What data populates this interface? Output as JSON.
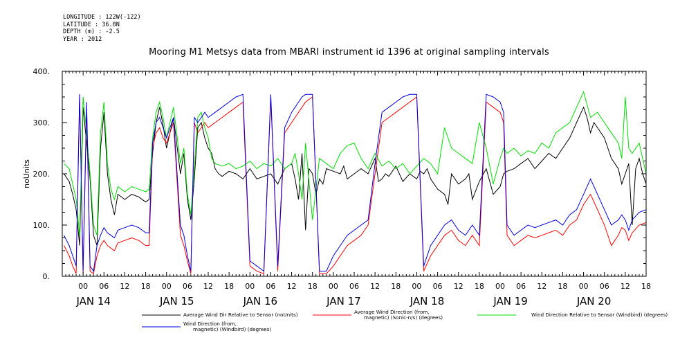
{
  "header": {
    "longitude": "LONGITUDE : 122W(-122)",
    "latitude": "LATITUDE : 36.8N",
    "depth": "DEPTH (m) : -2.5",
    "year": "YEAR : 2012"
  },
  "chart_data": {
    "type": "line",
    "title": "Mooring M1 Metsys data from MBARI instrument id 1396 at original sampling intervals",
    "ylabel": "noUnits",
    "ylim": [
      0,
      400
    ],
    "yticks": [
      0,
      100,
      200,
      300,
      400
    ],
    "ytick_labels": [
      "0.",
      "100.",
      "200.",
      "300.",
      "400."
    ],
    "xlim_hours": [
      -6,
      162
    ],
    "x_hour_tick_labels": [
      "00",
      "06",
      "12",
      "18",
      "00",
      "06",
      "12",
      "18",
      "00",
      "06",
      "12",
      "18",
      "00",
      "06",
      "12",
      "18",
      "00",
      "06",
      "12",
      "18",
      "00",
      "06",
      "12",
      "18",
      "00",
      "06",
      "12",
      "18"
    ],
    "x_hour_tick_hours": [
      0,
      6,
      12,
      18,
      24,
      30,
      36,
      42,
      48,
      54,
      60,
      66,
      72,
      78,
      84,
      90,
      96,
      102,
      108,
      114,
      120,
      126,
      132,
      138,
      144,
      150,
      156,
      162
    ],
    "day_labels": [
      "JAN 14",
      "JAN 15",
      "JAN 16",
      "JAN 17",
      "JAN 18",
      "JAN 19",
      "JAN 20"
    ],
    "day_label_hours": [
      3,
      27,
      51,
      75,
      99,
      123,
      147
    ],
    "series": [
      {
        "name": "Average Wind Dir Relative to Sensor (noUnits)",
        "color": "#000000",
        "x": [
          -5.5,
          -4,
          -3,
          -2,
          -1,
          0,
          1,
          2,
          3,
          4,
          5,
          6,
          7,
          8,
          9,
          10,
          12,
          14,
          16,
          18,
          19,
          20,
          21,
          22,
          23,
          24,
          26,
          28,
          29,
          30,
          31,
          32,
          33,
          34,
          35,
          36,
          37,
          38,
          39,
          40,
          42,
          44,
          46,
          48,
          50,
          52,
          54,
          56,
          58,
          60,
          61,
          62,
          63,
          64,
          65,
          66,
          67,
          68,
          69,
          70,
          72,
          74,
          75,
          76,
          78,
          80,
          82,
          84,
          85,
          86,
          87,
          88,
          90,
          92,
          94,
          96,
          97,
          98,
          99,
          100,
          102,
          104,
          105,
          106,
          108,
          110,
          111,
          112,
          114,
          116,
          118,
          120,
          121,
          122,
          124,
          126,
          128,
          130,
          132,
          134,
          136,
          138,
          140,
          142,
          144,
          145,
          146,
          147,
          148,
          150,
          152,
          154,
          155,
          156,
          157,
          158,
          159,
          160,
          161,
          162
        ],
        "y": [
          200,
          185,
          160,
          130,
          60,
          330,
          260,
          190,
          80,
          60,
          250,
          320,
          200,
          150,
          120,
          160,
          150,
          160,
          155,
          145,
          150,
          240,
          300,
          330,
          295,
          250,
          310,
          200,
          240,
          150,
          110,
          190,
          290,
          300,
          270,
          250,
          240,
          210,
          200,
          195,
          205,
          200,
          190,
          210,
          190,
          195,
          200,
          180,
          210,
          220,
          190,
          150,
          240,
          90,
          210,
          200,
          160,
          190,
          180,
          210,
          205,
          200,
          215,
          190,
          200,
          210,
          200,
          230,
          185,
          190,
          200,
          195,
          215,
          185,
          200,
          190,
          205,
          200,
          210,
          190,
          170,
          160,
          140,
          200,
          180,
          190,
          200,
          150,
          185,
          210,
          160,
          175,
          200,
          205,
          210,
          220,
          230,
          210,
          225,
          240,
          230,
          250,
          270,
          300,
          330,
          310,
          280,
          300,
          290,
          270,
          230,
          210,
          180,
          200,
          220,
          100,
          210,
          230,
          200,
          180
        ]
      },
      {
        "name": "Average Wind Direction (from, magnetic) (Sonic-n/s) (degrees)",
        "color": "#ff0000",
        "x": [
          -5.5,
          -4,
          -3,
          -2,
          -1,
          0,
          1,
          2,
          3,
          4,
          5,
          6,
          7,
          8,
          9,
          10,
          12,
          14,
          16,
          18,
          19,
          20,
          21,
          22,
          23,
          24,
          26,
          28,
          29,
          30,
          31,
          32,
          33,
          34,
          35,
          36,
          38,
          40,
          42,
          44,
          46,
          48,
          50,
          52,
          54,
          56,
          58,
          60,
          61,
          62,
          63,
          64,
          66,
          68,
          70,
          72,
          74,
          76,
          78,
          80,
          82,
          84,
          86,
          88,
          90,
          92,
          94,
          96,
          98,
          100,
          102,
          104,
          106,
          108,
          110,
          112,
          114,
          116,
          118,
          120,
          121,
          122,
          124,
          126,
          128,
          130,
          132,
          134,
          136,
          138,
          140,
          142,
          144,
          146,
          148,
          150,
          152,
          154,
          155,
          156,
          157,
          158,
          160,
          162
        ],
        "y": [
          60,
          40,
          20,
          5,
          355,
          5,
          330,
          10,
          5,
          40,
          60,
          70,
          60,
          55,
          50,
          65,
          70,
          75,
          70,
          60,
          60,
          250,
          280,
          290,
          270,
          260,
          300,
          80,
          60,
          30,
          5,
          300,
          280,
          290,
          300,
          290,
          300,
          310,
          320,
          330,
          340,
          20,
          10,
          5,
          350,
          10,
          280,
          300,
          310,
          320,
          330,
          340,
          350,
          5,
          5,
          20,
          40,
          60,
          70,
          80,
          100,
          200,
          300,
          310,
          320,
          330,
          340,
          350,
          10,
          40,
          60,
          80,
          90,
          70,
          60,
          80,
          60,
          340,
          330,
          320,
          300,
          80,
          60,
          70,
          80,
          75,
          80,
          85,
          90,
          80,
          100,
          110,
          140,
          160,
          130,
          100,
          60,
          80,
          95,
          90,
          70,
          85,
          100,
          105
        ]
      },
      {
        "name": "Wind Direction Relative to Sensor (Windbird) (degrees)",
        "color": "#00dd00",
        "x": [
          -5.5,
          -4,
          -3,
          -2,
          -1,
          0,
          1,
          2,
          3,
          4,
          5,
          6,
          7,
          8,
          9,
          10,
          12,
          14,
          16,
          18,
          19,
          20,
          21,
          22,
          23,
          24,
          26,
          28,
          29,
          30,
          31,
          32,
          33,
          34,
          35,
          36,
          37,
          38,
          40,
          42,
          44,
          46,
          48,
          50,
          52,
          54,
          56,
          58,
          60,
          61,
          62,
          63,
          64,
          66,
          68,
          70,
          72,
          74,
          76,
          78,
          80,
          82,
          84,
          86,
          88,
          90,
          92,
          94,
          96,
          98,
          100,
          102,
          104,
          106,
          108,
          110,
          112,
          114,
          116,
          118,
          120,
          121,
          122,
          124,
          126,
          128,
          130,
          132,
          134,
          136,
          138,
          140,
          142,
          144,
          146,
          148,
          150,
          152,
          154,
          155,
          156,
          157,
          158,
          160,
          162
        ],
        "y": [
          220,
          210,
          180,
          150,
          80,
          350,
          280,
          200,
          100,
          80,
          280,
          340,
          220,
          170,
          150,
          175,
          165,
          175,
          170,
          165,
          170,
          270,
          320,
          340,
          310,
          270,
          330,
          220,
          250,
          160,
          120,
          210,
          310,
          320,
          290,
          270,
          230,
          220,
          215,
          220,
          210,
          215,
          225,
          210,
          220,
          215,
          230,
          210,
          220,
          240,
          200,
          150,
          260,
          110,
          230,
          220,
          210,
          240,
          255,
          260,
          230,
          210,
          240,
          215,
          225,
          210,
          220,
          200,
          215,
          230,
          220,
          200,
          290,
          250,
          240,
          230,
          220,
          300,
          250,
          180,
          230,
          250,
          240,
          250,
          235,
          245,
          240,
          260,
          250,
          280,
          290,
          300,
          330,
          360,
          310,
          320,
          300,
          280,
          260,
          230,
          350,
          250,
          240,
          260,
          200
        ]
      },
      {
        "name": "Wind Direction (from, magnetic) (Windbird) (degrees)",
        "color": "#0000dd",
        "x": [
          -5.5,
          -4,
          -3,
          -2,
          -1,
          0,
          1,
          2,
          3,
          4,
          5,
          6,
          7,
          8,
          9,
          10,
          12,
          14,
          16,
          18,
          19,
          20,
          21,
          22,
          23,
          24,
          26,
          28,
          29,
          30,
          31,
          32,
          33,
          34,
          35,
          36,
          38,
          40,
          42,
          44,
          46,
          48,
          50,
          52,
          54,
          56,
          58,
          60,
          61,
          62,
          63,
          64,
          66,
          68,
          70,
          72,
          74,
          76,
          78,
          80,
          82,
          84,
          86,
          88,
          90,
          92,
          94,
          96,
          98,
          100,
          102,
          104,
          106,
          108,
          110,
          112,
          114,
          116,
          118,
          120,
          121,
          122,
          124,
          126,
          128,
          130,
          132,
          134,
          136,
          138,
          140,
          142,
          144,
          146,
          148,
          150,
          152,
          154,
          155,
          156,
          157,
          158,
          160,
          162
        ],
        "y": [
          80,
          60,
          40,
          20,
          355,
          10,
          340,
          20,
          10,
          60,
          80,
          95,
          85,
          80,
          75,
          90,
          95,
          100,
          95,
          85,
          85,
          260,
          300,
          310,
          290,
          270,
          310,
          100,
          80,
          40,
          10,
          310,
          300,
          310,
          320,
          310,
          320,
          330,
          340,
          350,
          355,
          30,
          20,
          10,
          355,
          20,
          290,
          320,
          330,
          340,
          350,
          355,
          355,
          10,
          10,
          40,
          60,
          80,
          90,
          100,
          110,
          220,
          320,
          330,
          340,
          350,
          355,
          355,
          20,
          60,
          80,
          100,
          110,
          90,
          80,
          100,
          80,
          355,
          350,
          340,
          320,
          100,
          80,
          90,
          100,
          95,
          100,
          105,
          110,
          100,
          120,
          130,
          160,
          190,
          160,
          130,
          100,
          110,
          120,
          110,
          90,
          110,
          125,
          130
        ]
      }
    ],
    "legend": [
      {
        "label_lines": [
          "Average Wind Dir Relative to Sensor (noUnits)"
        ],
        "color": "#000000"
      },
      {
        "label_lines": [
          "Average Wind Direction (from,",
          "magnetic) (Sonic-n/s) (degrees)"
        ],
        "color": "#ff0000"
      },
      {
        "label_lines": [
          "Wind Direction Relative to Sensor (Windbird) (degrees)"
        ],
        "color": "#00dd00"
      },
      {
        "label_lines": [
          "Wind Direction (from,",
          "magnetic) (Windbird) (degrees)"
        ],
        "color": "#0000dd"
      }
    ]
  }
}
